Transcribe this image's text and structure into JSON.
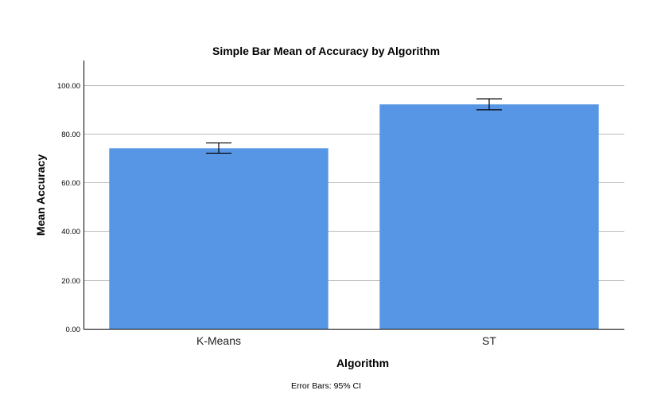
{
  "chart_data": {
    "type": "bar",
    "title": "Simple Bar Mean of Accuracy by Algorithm",
    "xlabel": "Algorithm",
    "ylabel": "Mean Accuracy",
    "categories": [
      "K-Means",
      "ST"
    ],
    "values": [
      74,
      92
    ],
    "error_bars": {
      "type": "95% CI",
      "lower": [
        72,
        89.8
      ],
      "upper": [
        76.2,
        94.3
      ]
    },
    "yticks": [
      0,
      20,
      40,
      60,
      80,
      100
    ],
    "ytick_labels": [
      "0.00",
      "20.00",
      "40.00",
      "60.00",
      "80.00",
      "100.00"
    ],
    "ylim": [
      0,
      110
    ],
    "grid": true,
    "legend": "none",
    "footnote": "Error Bars: 95% CI",
    "colors": {
      "bar": "#5795e5",
      "grid": "#bcbcbc",
      "axis": "#000000",
      "error_bar": "#000000"
    }
  }
}
